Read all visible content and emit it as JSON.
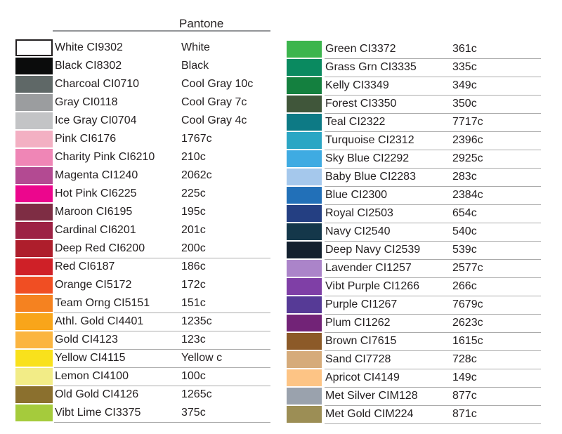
{
  "header": {
    "pantone_label": "Pantone"
  },
  "style": {
    "text_color": "#231f20",
    "underline_color": "#ababab",
    "header_line_color": "#939598",
    "background": "#ffffff"
  },
  "chart_data": {
    "type": "table",
    "title": "Pantone",
    "columns_spec": [
      "swatch_color",
      "name",
      "code",
      "pantone"
    ],
    "left_rows": [
      {
        "name": "White",
        "code": "CI9302",
        "pantone": "White",
        "color": "#ffffff",
        "bordered": true,
        "underline": false
      },
      {
        "name": "Black",
        "code": "CI8302",
        "pantone": "Black",
        "color": "#0b0c0c",
        "bordered": false,
        "underline": false
      },
      {
        "name": "Charcoal",
        "code": "CI0710",
        "pantone": "Cool Gray 10c",
        "color": "#5f6867",
        "bordered": false,
        "underline": false
      },
      {
        "name": "Gray",
        "code": "CI0118",
        "pantone": "Cool Gray 7c",
        "color": "#9b9d9f",
        "bordered": false,
        "underline": false
      },
      {
        "name": "Ice Gray",
        "code": "CI0704",
        "pantone": "Cool Gray 4c",
        "color": "#c3c4c6",
        "bordered": false,
        "underline": false
      },
      {
        "name": "Pink",
        "code": "CI6176",
        "pantone": "1767c",
        "color": "#f3b0c3",
        "bordered": false,
        "underline": false
      },
      {
        "name": "Charity Pink",
        "code": "CI6210",
        "pantone": "210c",
        "color": "#ef86b6",
        "bordered": false,
        "underline": false
      },
      {
        "name": "Magenta",
        "code": "CI1240",
        "pantone": "2062c",
        "color": "#b34a92",
        "bordered": false,
        "underline": false
      },
      {
        "name": "Hot Pink",
        "code": "CI6225",
        "pantone": "225c",
        "color": "#ec068d",
        "bordered": false,
        "underline": false
      },
      {
        "name": "Maroon",
        "code": "CI6195",
        "pantone": "195c",
        "color": "#7e2d44",
        "bordered": false,
        "underline": false
      },
      {
        "name": "Cardinal",
        "code": "CI6201",
        "pantone": "201c",
        "color": "#9d2144",
        "bordered": false,
        "underline": false
      },
      {
        "name": "Deep Red",
        "code": "CI6200",
        "pantone": "200c",
        "color": "#ae1e2c",
        "bordered": false,
        "underline": true
      },
      {
        "name": "Red",
        "code": "CI6187",
        "pantone": "186c",
        "color": "#cf2027",
        "bordered": false,
        "underline": false
      },
      {
        "name": "Orange",
        "code": "CI5172",
        "pantone": "172c",
        "color": "#f04e23",
        "bordered": false,
        "underline": false
      },
      {
        "name": "Team Orng",
        "code": "CI5151",
        "pantone": "151c",
        "color": "#f58220",
        "bordered": false,
        "underline": true
      },
      {
        "name": "Athl. Gold",
        "code": "CI4401",
        "pantone": "1235c",
        "color": "#f9a51a",
        "bordered": false,
        "underline": true
      },
      {
        "name": "Gold",
        "code": "CI4123",
        "pantone": "123c",
        "color": "#fbb540",
        "bordered": false,
        "underline": true
      },
      {
        "name": "Yellow",
        "code": "CI4115",
        "pantone": "Yellow c",
        "color": "#f9e11c",
        "bordered": false,
        "underline": true
      },
      {
        "name": "Lemon",
        "code": "CI4100",
        "pantone": "100c",
        "color": "#f2ec87",
        "bordered": false,
        "underline": true
      },
      {
        "name": "Old Gold",
        "code": "CI4126",
        "pantone": "1265c",
        "color": "#8b702e",
        "bordered": false,
        "underline": false
      },
      {
        "name": "Vibt Lime",
        "code": "CI3375",
        "pantone": "375c",
        "color": "#a5cb3c",
        "bordered": false,
        "underline": true
      }
    ],
    "right_rows": [
      {
        "name": "Green",
        "code": "CI3372",
        "pantone": "361c",
        "color": "#3cb54d",
        "bordered": false,
        "underline": true
      },
      {
        "name": "Grass Grn",
        "code": "CI3335",
        "pantone": "335c",
        "color": "#0a8a60",
        "bordered": false,
        "underline": true
      },
      {
        "name": "Kelly",
        "code": "CI3349",
        "pantone": "349c",
        "color": "#14803f",
        "bordered": false,
        "underline": true
      },
      {
        "name": "Forest",
        "code": "CI3350",
        "pantone": "350c",
        "color": "#40563a",
        "bordered": false,
        "underline": true
      },
      {
        "name": "Teal",
        "code": "CI2322",
        "pantone": "7717c",
        "color": "#0d7a85",
        "bordered": false,
        "underline": true
      },
      {
        "name": "Turquoise",
        "code": "CI2312",
        "pantone": "2396c",
        "color": "#2ba6c4",
        "bordered": false,
        "underline": true
      },
      {
        "name": "Sky Blue",
        "code": "CI2292",
        "pantone": "2925c",
        "color": "#3fabe2",
        "bordered": false,
        "underline": true
      },
      {
        "name": "Baby Blue",
        "code": "CI2283",
        "pantone": "283c",
        "color": "#a5c8ec",
        "bordered": false,
        "underline": true
      },
      {
        "name": "Blue",
        "code": "CI2300",
        "pantone": "2384c",
        "color": "#2270b8",
        "bordered": false,
        "underline": true
      },
      {
        "name": "Royal",
        "code": "CI2503",
        "pantone": "654c",
        "color": "#243f82",
        "bordered": false,
        "underline": true
      },
      {
        "name": "Navy",
        "code": "CI2540",
        "pantone": "540c",
        "color": "#14374a",
        "bordered": false,
        "underline": true
      },
      {
        "name": "Deep Navy",
        "code": "CI2539",
        "pantone": "539c",
        "color": "#13202e",
        "bordered": false,
        "underline": true
      },
      {
        "name": "Lavender",
        "code": "CI1257",
        "pantone": "2577c",
        "color": "#ab84c9",
        "bordered": false,
        "underline": true
      },
      {
        "name": "Vibt Purple",
        "code": "CI1266",
        "pantone": "266c",
        "color": "#7f3fa6",
        "bordered": false,
        "underline": true
      },
      {
        "name": "Purple",
        "code": "CI1267",
        "pantone": "7679c",
        "color": "#563a96",
        "bordered": false,
        "underline": true
      },
      {
        "name": "Plum",
        "code": "CI1262",
        "pantone": "2623c",
        "color": "#722377",
        "bordered": false,
        "underline": true
      },
      {
        "name": "Brown",
        "code": "CI7615",
        "pantone": "1615c",
        "color": "#8c5a28",
        "bordered": false,
        "underline": true
      },
      {
        "name": "Sand",
        "code": "CI7728",
        "pantone": "728c",
        "color": "#d6ab7a",
        "bordered": false,
        "underline": true
      },
      {
        "name": "Apricot",
        "code": "CI4149",
        "pantone": "149c",
        "color": "#fdc485",
        "bordered": false,
        "underline": true
      },
      {
        "name": "Met Silver",
        "code": "CIM128",
        "pantone": "877c",
        "color": "#9aa2ad",
        "bordered": false,
        "underline": true
      },
      {
        "name": "Met Gold",
        "code": "CIM224",
        "pantone": "871c",
        "color": "#9c8e55",
        "bordered": false,
        "underline": true
      }
    ]
  }
}
